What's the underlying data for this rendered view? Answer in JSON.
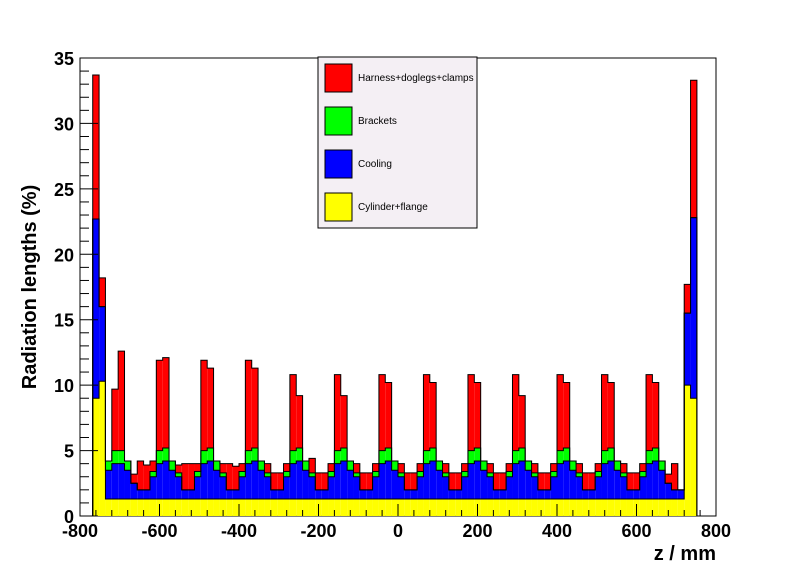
{
  "chart_data": {
    "type": "bar",
    "stacked": true,
    "title": "",
    "xlabel": "z / mm",
    "ylabel": "Radiation lengths (%)",
    "xlim": [
      -800,
      800
    ],
    "ylim": [
      0,
      35
    ],
    "xticks": [
      -800,
      -600,
      -400,
      -200,
      0,
      200,
      400,
      600,
      800
    ],
    "yticks": [
      0,
      5,
      10,
      15,
      20,
      25,
      30,
      35
    ],
    "grid": false,
    "legend_position": "top-center",
    "bin_edges": [
      -768,
      -752,
      -736,
      -720,
      -704,
      -688,
      -672,
      -656,
      -640,
      -624,
      -608,
      -592,
      -576,
      -560,
      -544,
      -528,
      -512,
      -496,
      -480,
      -464,
      -448,
      -432,
      -416,
      -400,
      -384,
      -368,
      -352,
      -336,
      -320,
      -304,
      -288,
      -272,
      -256,
      -240,
      -224,
      -208,
      -192,
      -176,
      -160,
      -144,
      -128,
      -112,
      -96,
      -80,
      -64,
      -48,
      -32,
      -16,
      0,
      16,
      32,
      48,
      64,
      80,
      96,
      112,
      128,
      144,
      160,
      176,
      192,
      208,
      224,
      240,
      256,
      272,
      288,
      304,
      320,
      336,
      352,
      368,
      384,
      400,
      416,
      432,
      448,
      464,
      480,
      496,
      512,
      528,
      544,
      560,
      576,
      592,
      608,
      624,
      640,
      656,
      672,
      688,
      704,
      720,
      736,
      752,
      768
    ],
    "series": [
      {
        "name": "Cylinder+flange",
        "color": "#ffff00",
        "values": [
          9.0,
          10.3,
          1.3,
          1.3,
          1.3,
          1.3,
          1.3,
          1.3,
          1.3,
          1.3,
          1.3,
          1.3,
          1.3,
          1.3,
          1.3,
          1.3,
          1.3,
          1.3,
          1.3,
          1.3,
          1.3,
          1.3,
          1.3,
          1.3,
          1.3,
          1.3,
          1.3,
          1.3,
          1.3,
          1.3,
          1.3,
          1.3,
          1.3,
          1.3,
          1.3,
          1.3,
          1.3,
          1.3,
          1.3,
          1.3,
          1.3,
          1.3,
          1.3,
          1.3,
          1.3,
          1.3,
          1.3,
          1.3,
          1.3,
          1.3,
          1.3,
          1.3,
          1.3,
          1.3,
          1.3,
          1.3,
          1.3,
          1.3,
          1.3,
          1.3,
          1.3,
          1.3,
          1.3,
          1.3,
          1.3,
          1.3,
          1.3,
          1.3,
          1.3,
          1.3,
          1.3,
          1.3,
          1.3,
          1.3,
          1.3,
          1.3,
          1.3,
          1.3,
          1.3,
          1.3,
          1.3,
          1.3,
          1.3,
          1.3,
          1.3,
          1.3,
          1.3,
          1.3,
          1.3,
          1.3,
          1.3,
          1.3,
          1.3,
          10.0,
          9.0
        ]
      },
      {
        "name": "Cooling",
        "color": "#0000ff",
        "values": [
          13.7,
          5.7,
          2.2,
          2.7,
          2.7,
          2.2,
          1.2,
          0.7,
          0.7,
          1.7,
          2.7,
          2.9,
          2.2,
          1.7,
          0.7,
          0.7,
          1.7,
          2.7,
          2.9,
          2.2,
          1.7,
          0.7,
          0.7,
          1.7,
          2.7,
          2.9,
          2.2,
          1.7,
          0.7,
          0.7,
          1.7,
          2.7,
          2.9,
          2.2,
          1.7,
          0.7,
          0.7,
          1.7,
          2.7,
          2.9,
          2.2,
          1.7,
          0.7,
          0.7,
          1.7,
          2.7,
          2.9,
          2.2,
          1.7,
          0.7,
          0.7,
          1.7,
          2.7,
          2.9,
          2.2,
          1.7,
          0.7,
          0.7,
          1.7,
          2.7,
          2.9,
          2.2,
          1.7,
          0.7,
          0.7,
          1.7,
          2.7,
          2.9,
          2.2,
          1.7,
          0.7,
          0.7,
          1.7,
          2.7,
          2.9,
          2.2,
          1.7,
          0.7,
          0.7,
          1.7,
          2.7,
          2.9,
          2.2,
          1.7,
          0.7,
          0.7,
          1.7,
          2.7,
          2.9,
          2.2,
          1.2,
          0.7,
          0.7,
          5.5,
          13.8
        ]
      },
      {
        "name": "Brackets",
        "color": "#00ff00",
        "values": [
          0,
          0,
          0.7,
          1.0,
          1.0,
          0.7,
          0,
          0,
          0,
          0.4,
          1.0,
          1.0,
          0.7,
          0.3,
          0,
          0,
          0.4,
          1.0,
          1.0,
          0.7,
          0.3,
          0,
          0,
          0.4,
          1.0,
          1.0,
          0.7,
          0.3,
          0,
          0,
          0.4,
          1.0,
          1.0,
          0.7,
          0.3,
          0,
          0,
          0.4,
          1.0,
          1.0,
          0.7,
          0.3,
          0,
          0,
          0.4,
          1.0,
          1.0,
          0.7,
          0.3,
          0,
          0,
          0.4,
          1.0,
          1.0,
          0.7,
          0.3,
          0,
          0,
          0.4,
          1.0,
          1.0,
          0.7,
          0.3,
          0,
          0,
          0.4,
          1.0,
          1.0,
          0.7,
          0.3,
          0,
          0,
          0.4,
          1.0,
          1.0,
          0.7,
          0.3,
          0,
          0,
          0.4,
          1.0,
          1.0,
          0.7,
          0.3,
          0,
          0,
          0.4,
          1.0,
          1.0,
          0.7,
          0,
          0,
          0,
          0,
          0
        ]
      },
      {
        "name": "Harness+doglegs+clamps",
        "color": "#ff0000",
        "values": [
          11.0,
          2.2,
          0,
          4.7,
          7.6,
          0,
          0.7,
          2.2,
          1.9,
          0.8,
          6.9,
          6.9,
          0,
          0.6,
          2.0,
          2.0,
          0.6,
          6.9,
          6.1,
          0,
          0.7,
          2.0,
          1.8,
          0.6,
          6.9,
          6.1,
          0,
          0.7,
          1.3,
          1.3,
          0.6,
          5.8,
          4.0,
          0,
          1.1,
          1.3,
          1.3,
          0.6,
          5.8,
          4.0,
          0,
          0.7,
          1.3,
          1.3,
          0.6,
          5.8,
          5.0,
          0,
          0.7,
          1.3,
          1.3,
          0.6,
          5.8,
          5.0,
          0,
          0.7,
          1.3,
          1.3,
          0.6,
          5.8,
          5.0,
          0,
          0.7,
          1.3,
          1.3,
          0.6,
          5.8,
          4.0,
          0,
          0.7,
          1.3,
          1.3,
          0.6,
          5.8,
          5.0,
          0,
          0.7,
          1.3,
          1.3,
          0.6,
          5.8,
          5.0,
          0,
          0.7,
          1.3,
          1.3,
          0.6,
          5.8,
          5.0,
          0,
          0.7,
          2.0,
          0,
          2.2,
          10.5
        ]
      }
    ]
  }
}
